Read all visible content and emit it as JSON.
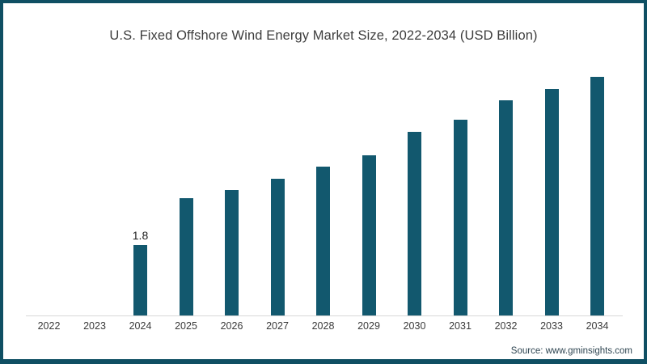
{
  "title": "U.S. Fixed Offshore Wind Energy Market Size, 2022-2034 (USD Billion)",
  "source": {
    "text": "Source: www.gminsights.com"
  },
  "colors": {
    "bar": "#12586e",
    "frame_border": "#0f4f63",
    "axis_line": "#d8d8d8",
    "title_text": "#3d3d3d",
    "tick_text": "#3a3a3a",
    "background": "#ffffff"
  },
  "chart_data": {
    "type": "bar",
    "title": "U.S. Fixed Offshore Wind Energy Market Size, 2022-2034 (USD Billion)",
    "xlabel": "",
    "ylabel": "",
    "unit": "USD Billion",
    "categories": [
      "2022",
      "2023",
      "2024",
      "2025",
      "2026",
      "2027",
      "2028",
      "2029",
      "2030",
      "2031",
      "2032",
      "2033",
      "2034"
    ],
    "values": [
      0,
      0,
      1.8,
      3.0,
      3.2,
      3.5,
      3.8,
      4.1,
      4.7,
      5.0,
      5.5,
      5.8,
      6.1
    ],
    "bar_labels": {
      "2024": "1.8"
    },
    "ylim": [
      0,
      6.5
    ],
    "grid": false,
    "legend": false,
    "value_axis_visible": false
  }
}
